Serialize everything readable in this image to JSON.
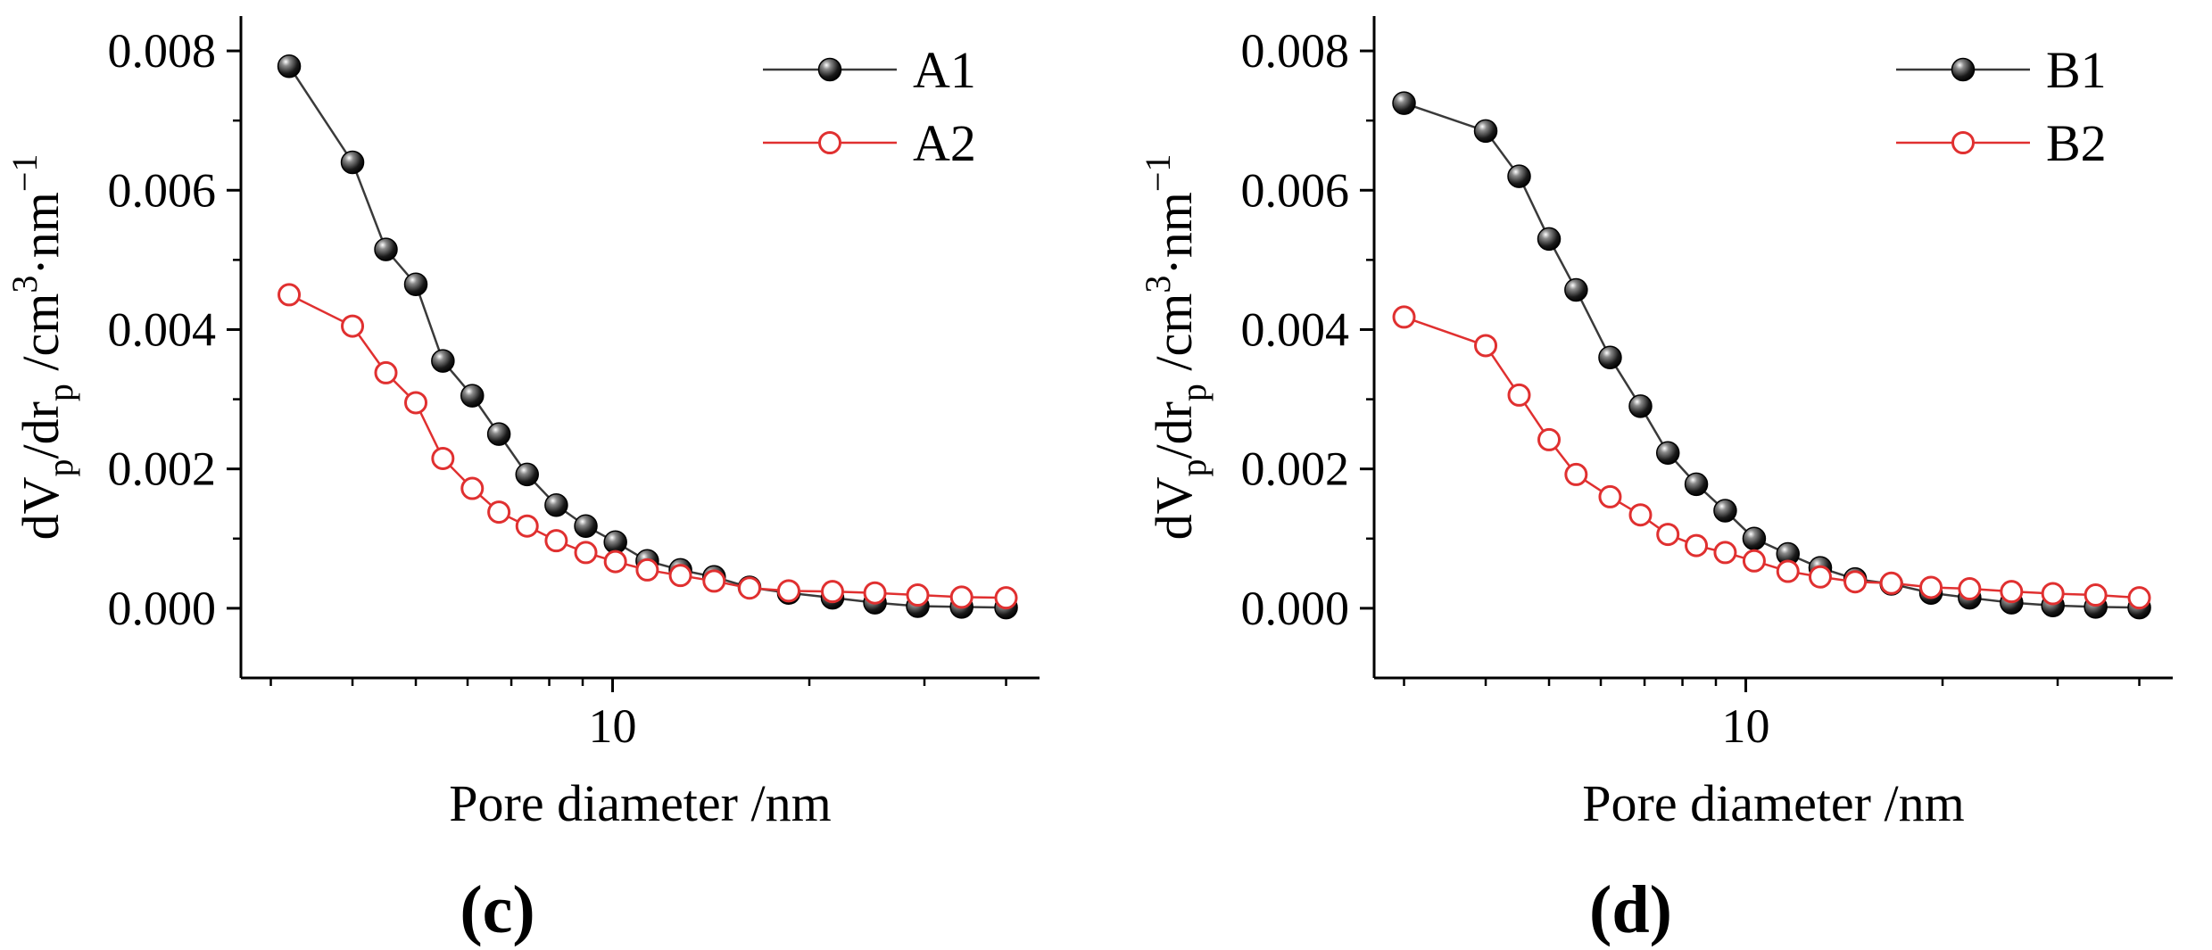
{
  "chart_data": [
    {
      "type": "line",
      "panel_label": "(c)",
      "panel_letter": "c",
      "xlabel": "Pore diameter /nm",
      "ylabel_parts": {
        "d1": "dV",
        "sub1": "p",
        "slash": "/dr",
        "sub2": "p",
        "unit": " /cm",
        "sup1": "3",
        "mid": "·nm",
        "sup2": "−1"
      },
      "x_scale": "log",
      "xlim": [
        2.7,
        45
      ],
      "ylim": [
        -0.001,
        0.0085
      ],
      "yticks": [
        0.0,
        0.002,
        0.004,
        0.006,
        0.008
      ],
      "ytick_labels": [
        "0.000",
        "0.002",
        "0.004",
        "0.006",
        "0.008"
      ],
      "xticks": [
        10
      ],
      "xtick_labels": [
        "10"
      ],
      "legend_position": "top-right",
      "series": [
        {
          "name": "A1",
          "color": "#3a3a3a",
          "marker": "filled-sphere",
          "x": [
            3.2,
            4.0,
            4.5,
            5.0,
            5.5,
            6.1,
            6.7,
            7.4,
            8.2,
            9.1,
            10.1,
            11.3,
            12.7,
            14.3,
            16.2,
            18.6,
            21.7,
            25.2,
            29.3,
            34.2,
            40.0
          ],
          "y": [
            0.00778,
            0.0064,
            0.00515,
            0.00465,
            0.00355,
            0.00305,
            0.0025,
            0.00192,
            0.00148,
            0.00118,
            0.00095,
            0.00068,
            0.00055,
            0.00045,
            0.0003,
            0.00022,
            0.00015,
            8e-05,
            3e-05,
            2e-05,
            1e-05
          ]
        },
        {
          "name": "A2",
          "color": "#e03030",
          "marker": "open-circle",
          "x": [
            3.2,
            4.0,
            4.5,
            5.0,
            5.5,
            6.1,
            6.7,
            7.4,
            8.2,
            9.1,
            10.1,
            11.3,
            12.7,
            14.3,
            16.2,
            18.6,
            21.7,
            25.2,
            29.3,
            34.2,
            40.0
          ],
          "y": [
            0.0045,
            0.00405,
            0.00338,
            0.00295,
            0.00215,
            0.00172,
            0.00138,
            0.00118,
            0.00097,
            0.0008,
            0.00067,
            0.00055,
            0.00047,
            0.00039,
            0.00029,
            0.00025,
            0.00024,
            0.00022,
            0.00019,
            0.00016,
            0.00015
          ]
        }
      ]
    },
    {
      "type": "line",
      "panel_label": "(d)",
      "panel_letter": "d",
      "xlabel": "Pore diameter /nm",
      "ylabel_parts": {
        "d1": "dV",
        "sub1": "p",
        "slash": "/dr",
        "sub2": "p",
        "unit": " /cm",
        "sup1": "3",
        "mid": "·nm",
        "sup2": "−1"
      },
      "x_scale": "log",
      "xlim": [
        2.7,
        45
      ],
      "ylim": [
        -0.001,
        0.0085
      ],
      "yticks": [
        0.0,
        0.002,
        0.004,
        0.006,
        0.008
      ],
      "ytick_labels": [
        "0.000",
        "0.002",
        "0.004",
        "0.006",
        "0.008"
      ],
      "xticks": [
        10
      ],
      "xtick_labels": [
        "10"
      ],
      "legend_position": "top-right",
      "series": [
        {
          "name": "B1",
          "color": "#3a3a3a",
          "marker": "filled-sphere",
          "x": [
            3.0,
            4.0,
            4.5,
            5.0,
            5.5,
            6.2,
            6.9,
            7.6,
            8.4,
            9.3,
            10.3,
            11.6,
            13.0,
            14.7,
            16.7,
            19.2,
            22.0,
            25.5,
            29.5,
            34.3,
            40.0
          ],
          "y": [
            0.00725,
            0.00685,
            0.0062,
            0.0053,
            0.00457,
            0.0036,
            0.0029,
            0.00223,
            0.00178,
            0.0014,
            0.001,
            0.00078,
            0.00058,
            0.00042,
            0.00035,
            0.00022,
            0.00015,
            8e-05,
            4e-05,
            2e-05,
            1e-05
          ]
        },
        {
          "name": "B2",
          "color": "#e03030",
          "marker": "open-circle",
          "x": [
            3.0,
            4.0,
            4.5,
            5.0,
            5.5,
            6.2,
            6.9,
            7.6,
            8.4,
            9.3,
            10.3,
            11.6,
            13.0,
            14.7,
            16.7,
            19.2,
            22.0,
            25.5,
            29.5,
            34.3,
            40.0
          ],
          "y": [
            0.00418,
            0.00377,
            0.00306,
            0.00242,
            0.00192,
            0.0016,
            0.00134,
            0.00106,
            0.0009,
            0.0008,
            0.00068,
            0.00053,
            0.00045,
            0.00038,
            0.00036,
            0.0003,
            0.00028,
            0.00024,
            0.00021,
            0.00019,
            0.00015
          ]
        }
      ]
    }
  ]
}
